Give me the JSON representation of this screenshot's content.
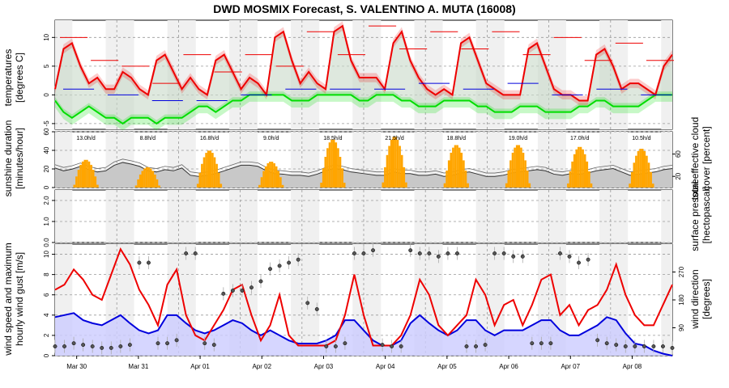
{
  "title": "DWD MOSMIX Forecast, S. VALENTINO A. MUTA (16008)",
  "colors": {
    "temp": "#ee0000",
    "dewpoint": "#00dd00",
    "sunshine": "#ffa500",
    "cloud_fill": "#c8c8c8",
    "wind": "#ee0000",
    "gust_fill": "#ccccff",
    "gust_line": "#0000dd",
    "night_bg": "#f0f0f0",
    "temp_fill": "#c8d8c8"
  },
  "chart_data": [
    {
      "type": "line",
      "panel": "temperature",
      "ylabel": "temperatures [degrees C]",
      "ylim": [
        -6,
        13
      ],
      "yticks": [
        "-5",
        "0",
        "5",
        "10"
      ],
      "x_start": "Mar 30",
      "days": 10,
      "series": [
        {
          "values": [
            1,
            8,
            9,
            5,
            2,
            3,
            1,
            1,
            4,
            3,
            1,
            0,
            6,
            7,
            4,
            1,
            3,
            1,
            0,
            6,
            7,
            4,
            1,
            3,
            2,
            0,
            10,
            11,
            6,
            2,
            4,
            2,
            1,
            11,
            12,
            6,
            3,
            3,
            3,
            1,
            9,
            11,
            6,
            3,
            1,
            0,
            1,
            0,
            9,
            10,
            6,
            2,
            1,
            0,
            0,
            0,
            8,
            9,
            5,
            1,
            0,
            0,
            -1,
            -1,
            7,
            8,
            5,
            1,
            2,
            2,
            1,
            0,
            5,
            7
          ]
        },
        {
          "values": [
            -1,
            -3,
            -4,
            -3,
            -2,
            -3,
            -4,
            -4,
            -5,
            -4,
            -4,
            -4,
            -5,
            -4,
            -4,
            -4,
            -3,
            -2,
            -2,
            -3,
            -2,
            -1,
            -1,
            0,
            0,
            0,
            0,
            0,
            -1,
            -1,
            -1,
            0,
            0,
            0,
            0,
            0,
            -1,
            -1,
            0,
            0,
            0,
            -1,
            -1,
            -2,
            -2,
            -2,
            -1,
            -1,
            -1,
            -1,
            -2,
            -2,
            -3,
            -3,
            -3,
            -2,
            -2,
            -2,
            -3,
            -3,
            -3,
            -3,
            -2,
            -2,
            -1,
            -1,
            -2,
            -2,
            -2,
            -2,
            -1,
            0,
            0,
            0
          ]
        }
      ],
      "daily_max_marks": [
        10,
        6,
        5,
        2,
        7,
        4,
        7,
        5,
        11,
        7,
        12,
        8,
        11,
        8,
        11,
        7,
        10,
        6,
        9,
        6
      ]
    },
    {
      "type": "bar",
      "panel": "sunshine",
      "ylabel": "sunshine duration [minutes/hour]",
      "ylim": [
        0,
        60
      ],
      "yticks": [
        "0",
        "20",
        "40",
        "60"
      ],
      "y2label": "total effective cloud cover [percent]",
      "y2ticks": [
        "20",
        "60"
      ],
      "daily_totals": [
        "13.0h/d",
        "8.8h/d",
        "16.8h/d",
        "9.0h/d",
        "18.5h/d",
        "21.5h/d",
        "18.8h/d",
        "19.0h/d",
        "17.0h/d",
        "10.5h/d"
      ],
      "sunshine_day_peaks": [
        30,
        22,
        40,
        28,
        52,
        55,
        46,
        46,
        44,
        42
      ],
      "cloud_cover": [
        35,
        30,
        33,
        38,
        32,
        28,
        30,
        40,
        45,
        42,
        38,
        30,
        28,
        32,
        30,
        35,
        22,
        20,
        22,
        25,
        30,
        35,
        40,
        40,
        38,
        30,
        25,
        24,
        22,
        22,
        20,
        24,
        30,
        34,
        32,
        28,
        26,
        24,
        22,
        22,
        28,
        25,
        25,
        22,
        22,
        24,
        20,
        22,
        26,
        28,
        24,
        20,
        20,
        22,
        26,
        28,
        30,
        32,
        30,
        24,
        22,
        25,
        24,
        26,
        30,
        32,
        34,
        28,
        22,
        24,
        26,
        28,
        32,
        34
      ]
    },
    {
      "type": "line",
      "panel": "pressure",
      "ylabel": "",
      "ylim": [
        0,
        2.5
      ],
      "yticks": [
        "0.0",
        "1.0",
        "2.0"
      ],
      "y2label": "surface pressure [hectopascal]",
      "values": []
    },
    {
      "type": "line",
      "panel": "wind",
      "ylabel": "wind speed and maximum hourly wind gust [m/s]",
      "ylim": [
        0,
        11
      ],
      "yticks": [
        "0",
        "2",
        "4",
        "6",
        "8",
        "10"
      ],
      "y2label": "wind direction [degrees]",
      "y2ticks": [
        "90",
        "180",
        "270"
      ],
      "x_tick_labels": [
        "Mar 30",
        "Mar 31",
        "Apr 01",
        "Apr 02",
        "Apr 03",
        "Apr 04",
        "Apr 05",
        "Apr 06",
        "Apr 07",
        "Apr 08"
      ],
      "series": [
        {
          "name_hidden": "gust",
          "values": [
            6.5,
            7,
            8.5,
            7.5,
            6,
            5.5,
            8,
            10.5,
            9,
            6.5,
            5,
            3,
            7,
            8.5,
            4,
            2,
            1.5,
            3,
            4.5,
            6.5,
            7,
            4,
            1.5,
            3,
            6,
            2,
            1,
            1,
            1,
            1,
            1.5,
            4,
            8,
            4,
            1,
            1,
            1,
            2,
            4,
            7.5,
            6,
            3,
            2,
            3,
            4,
            7.5,
            6,
            3,
            5,
            5.5,
            3,
            5,
            7.5,
            8,
            4,
            5,
            3,
            4.5,
            5,
            6.5,
            9,
            6,
            4,
            3,
            3,
            5,
            7
          ]
        },
        {
          "name_hidden": "speed",
          "values": [
            3.8,
            4,
            4.2,
            3.5,
            3.2,
            3,
            3.5,
            4,
            3.2,
            2.5,
            2.2,
            2.5,
            4,
            4,
            3.2,
            2.5,
            2.2,
            2.5,
            3,
            3.5,
            3.2,
            2.5,
            2,
            2.5,
            2,
            1.5,
            1.2,
            1.2,
            1.2,
            1.5,
            2,
            3.5,
            3.5,
            2.5,
            1.5,
            1,
            1,
            1.5,
            3.2,
            4,
            3.2,
            2.5,
            2,
            2.5,
            3.5,
            3.5,
            2.5,
            2,
            2.5,
            2.5,
            2.5,
            3,
            3.5,
            3.5,
            2.5,
            2,
            2,
            2.5,
            3,
            3.8,
            3.5,
            2.2,
            1.2,
            1,
            0.5,
            0.2,
            0
          ]
        }
      ],
      "wind_direction_deg": [
        30,
        30,
        40,
        35,
        30,
        25,
        25,
        30,
        35,
        300,
        300,
        40,
        40,
        50,
        330,
        330,
        40,
        35,
        200,
        210,
        210,
        220,
        240,
        280,
        290,
        300,
        310,
        170,
        150,
        30,
        30,
        40,
        330,
        330,
        340,
        35,
        30,
        30,
        340,
        330,
        330,
        320,
        330,
        330,
        30,
        30,
        35,
        330,
        330,
        320,
        320,
        40,
        40,
        40,
        330,
        320,
        300,
        310,
        50,
        40,
        35,
        30,
        30,
        30,
        30,
        30,
        25
      ]
    }
  ]
}
